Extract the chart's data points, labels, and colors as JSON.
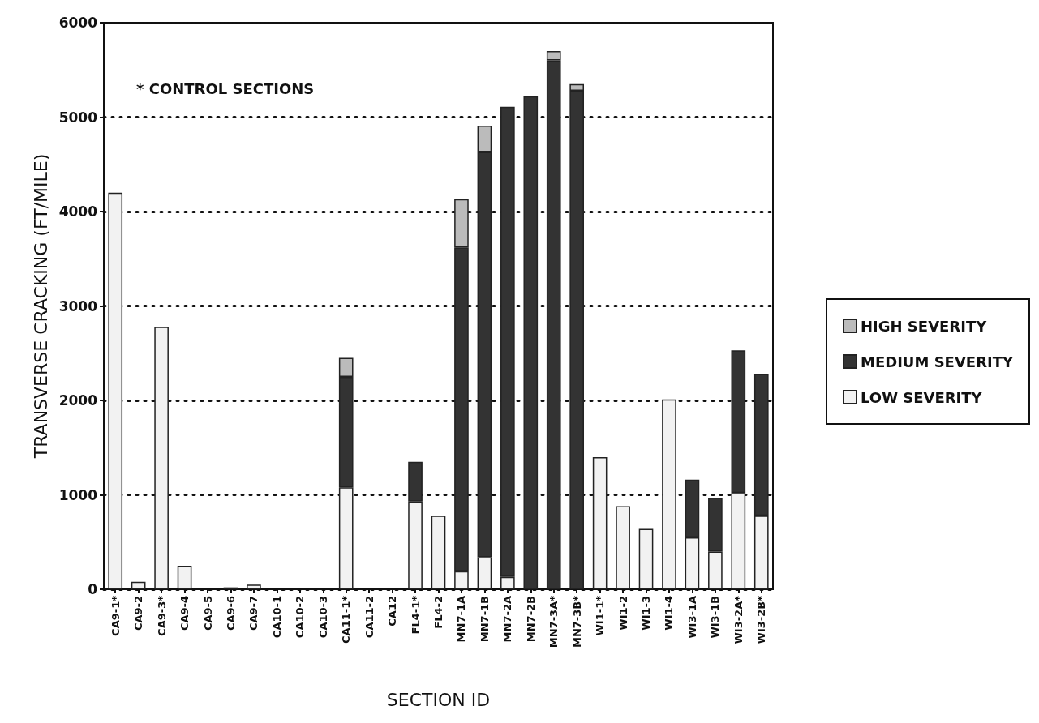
{
  "chart_data": {
    "type": "bar",
    "stacked": true,
    "xlabel": "SECTION ID",
    "ylabel": "TRANSVERSE CRACKING (FT/MILE)",
    "annotations": [
      "* CONTROL SECTIONS"
    ],
    "categories": [
      "CA9-1*",
      "CA9-2",
      "CA9-3*",
      "CA9-4",
      "CA9-5",
      "CA9-6",
      "CA9-7",
      "CA10-1",
      "CA10-2",
      "CA10-3",
      "CA11-1*",
      "CA11-2",
      "CA12",
      "FL4-1*",
      "FL4-2",
      "MN7-1A",
      "MN7-1B",
      "MN7-2A",
      "MN7-2B",
      "MN7-3A*",
      "MN7-3B*",
      "WI1-1*",
      "WI1-2",
      "WI1-3",
      "WI1-4",
      "WI3-1A",
      "WI3-1B",
      "WI3-2A*",
      "WI3-2B*"
    ],
    "series": [
      {
        "name": "LOW SEVERITY",
        "color": "#f2f2f2",
        "values": [
          4200,
          80,
          2780,
          250,
          0,
          20,
          50,
          0,
          0,
          0,
          1080,
          0,
          0,
          930,
          780,
          190,
          340,
          130,
          0,
          0,
          0,
          1400,
          880,
          640,
          2010,
          550,
          400,
          1020,
          780
        ]
      },
      {
        "name": "MEDIUM SEVERITY",
        "color": "#333333",
        "values": [
          0,
          0,
          0,
          0,
          0,
          0,
          0,
          0,
          0,
          0,
          1170,
          0,
          0,
          420,
          0,
          3430,
          4290,
          4980,
          5220,
          5600,
          5280,
          0,
          0,
          0,
          0,
          610,
          570,
          1510,
          1500
        ]
      },
      {
        "name": "HIGH SEVERITY",
        "color": "#bbbbbb",
        "values": [
          0,
          0,
          0,
          0,
          0,
          0,
          0,
          0,
          0,
          0,
          200,
          0,
          0,
          0,
          0,
          510,
          280,
          0,
          0,
          100,
          70,
          0,
          0,
          0,
          0,
          0,
          0,
          0,
          0
        ]
      }
    ],
    "ylim": [
      0,
      6000
    ],
    "yticks": [
      0,
      1000,
      2000,
      3000,
      4000,
      5000,
      6000
    ],
    "grid": "y",
    "legend": "right"
  }
}
